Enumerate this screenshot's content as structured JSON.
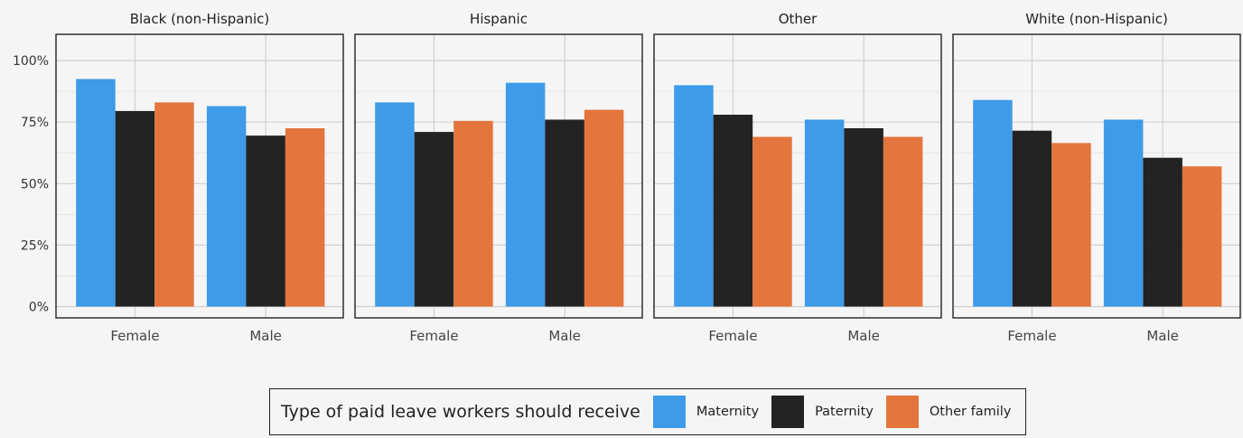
{
  "chart_data": {
    "type": "bar",
    "facet_by": "race_ethnicity",
    "facets": [
      {
        "title": "Black (non-Hispanic)",
        "categories": [
          "Female",
          "Male"
        ],
        "series": [
          {
            "name": "Maternity",
            "values": [
              92.5,
              81.5
            ]
          },
          {
            "name": "Paternity",
            "values": [
              79.5,
              69.5
            ]
          },
          {
            "name": "Other family",
            "values": [
              83.0,
              72.5
            ]
          }
        ]
      },
      {
        "title": "Hispanic",
        "categories": [
          "Female",
          "Male"
        ],
        "series": [
          {
            "name": "Maternity",
            "values": [
              83.0,
              91.0
            ]
          },
          {
            "name": "Paternity",
            "values": [
              71.0,
              76.0
            ]
          },
          {
            "name": "Other family",
            "values": [
              75.5,
              80.0
            ]
          }
        ]
      },
      {
        "title": "Other",
        "categories": [
          "Female",
          "Male"
        ],
        "series": [
          {
            "name": "Maternity",
            "values": [
              90.0,
              76.0
            ]
          },
          {
            "name": "Paternity",
            "values": [
              78.0,
              72.5
            ]
          },
          {
            "name": "Other family",
            "values": [
              69.0,
              69.0
            ]
          }
        ]
      },
      {
        "title": "White (non-Hispanic)",
        "categories": [
          "Female",
          "Male"
        ],
        "series": [
          {
            "name": "Maternity",
            "values": [
              84.0,
              76.0
            ]
          },
          {
            "name": "Paternity",
            "values": [
              71.5,
              60.5
            ]
          },
          {
            "name": "Other family",
            "values": [
              66.5,
              57.0
            ]
          }
        ]
      }
    ],
    "y_ticks": [
      "0%",
      "25%",
      "50%",
      "75%",
      "100%"
    ],
    "ylim": [
      0,
      110
    ],
    "grid": true,
    "legend_position": "bottom",
    "legend_title": "Type of paid leave workers should receive",
    "legend": [
      {
        "name": "Maternity",
        "color": "#3d9be9"
      },
      {
        "name": "Paternity",
        "color": "#232323"
      },
      {
        "name": "Other family",
        "color": "#e3753d"
      }
    ]
  }
}
